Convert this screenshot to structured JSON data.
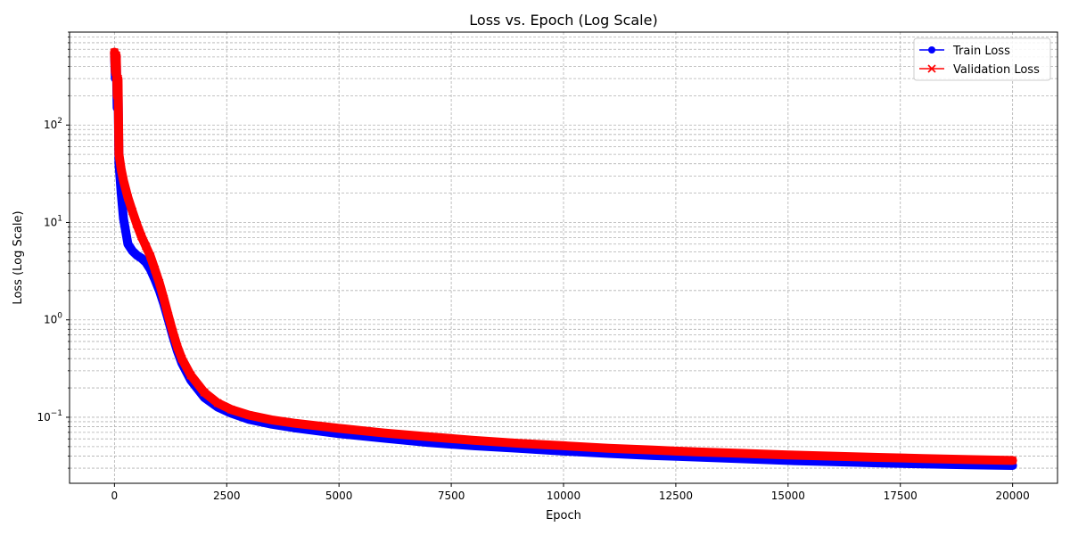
{
  "chart_data": {
    "type": "line",
    "title": "Loss vs. Epoch (Log Scale)",
    "xlabel": "Epoch",
    "ylabel": "Loss (Log Scale)",
    "xlim": [
      -1000,
      21000
    ],
    "ylim": [
      0.021,
      900
    ],
    "yscale": "log",
    "grid": true,
    "legend_position": "top-right",
    "x_ticks": [
      {
        "value": 0,
        "label": "0"
      },
      {
        "value": 2500,
        "label": "2500"
      },
      {
        "value": 5000,
        "label": "5000"
      },
      {
        "value": 7500,
        "label": "7500"
      },
      {
        "value": 10000,
        "label": "10000"
      },
      {
        "value": 12500,
        "label": "12500"
      },
      {
        "value": 15000,
        "label": "15000"
      },
      {
        "value": 17500,
        "label": "17500"
      },
      {
        "value": 20000,
        "label": "20000"
      }
    ],
    "y_ticks": [
      {
        "value": 0.1,
        "base": "10",
        "exp": "−1"
      },
      {
        "value": 1,
        "base": "10",
        "exp": "0"
      },
      {
        "value": 10,
        "base": "10",
        "exp": "1"
      },
      {
        "value": 100,
        "base": "10",
        "exp": "2"
      }
    ],
    "series": [
      {
        "name": "Train Loss",
        "color": "#0000ff",
        "marker": "circle",
        "x": [
          0,
          20,
          40,
          60,
          80,
          100,
          150,
          200,
          300,
          400,
          500,
          600,
          700,
          800,
          900,
          1000,
          1100,
          1200,
          1300,
          1400,
          1500,
          1700,
          2000,
          2300,
          2600,
          3000,
          3500,
          4000,
          5000,
          6000,
          7000,
          8000,
          9000,
          10000,
          11000,
          12000,
          13000,
          14000,
          15000,
          16000,
          17000,
          18000,
          19000,
          20000
        ],
        "y": [
          550,
          300,
          500,
          150,
          250,
          40,
          20,
          11,
          6.0,
          5.1,
          4.6,
          4.3,
          3.9,
          3.3,
          2.6,
          2.0,
          1.45,
          1.0,
          0.68,
          0.48,
          0.36,
          0.24,
          0.16,
          0.127,
          0.11,
          0.095,
          0.085,
          0.078,
          0.068,
          0.061,
          0.055,
          0.051,
          0.048,
          0.045,
          0.0425,
          0.0405,
          0.039,
          0.0375,
          0.036,
          0.035,
          0.034,
          0.0332,
          0.0325,
          0.032
        ]
      },
      {
        "name": "Validation Loss",
        "color": "#ff0000",
        "marker": "x",
        "x": [
          0,
          20,
          40,
          60,
          80,
          100,
          150,
          200,
          300,
          400,
          500,
          600,
          700,
          800,
          900,
          1000,
          1100,
          1200,
          1300,
          1400,
          1500,
          1700,
          2000,
          2300,
          2600,
          3000,
          3500,
          4000,
          5000,
          6000,
          7000,
          8000,
          9000,
          10000,
          11000,
          12000,
          13000,
          14000,
          15000,
          16000,
          17000,
          18000,
          19000,
          20000
        ],
        "y": [
          560,
          350,
          520,
          200,
          300,
          50,
          35,
          27,
          18,
          13,
          9.5,
          7.2,
          5.7,
          4.5,
          3.3,
          2.4,
          1.65,
          1.1,
          0.75,
          0.53,
          0.4,
          0.27,
          0.18,
          0.14,
          0.12,
          0.105,
          0.094,
          0.087,
          0.077,
          0.069,
          0.063,
          0.058,
          0.054,
          0.051,
          0.048,
          0.046,
          0.044,
          0.0425,
          0.041,
          0.0398,
          0.0387,
          0.0377,
          0.0368,
          0.036
        ]
      }
    ]
  }
}
